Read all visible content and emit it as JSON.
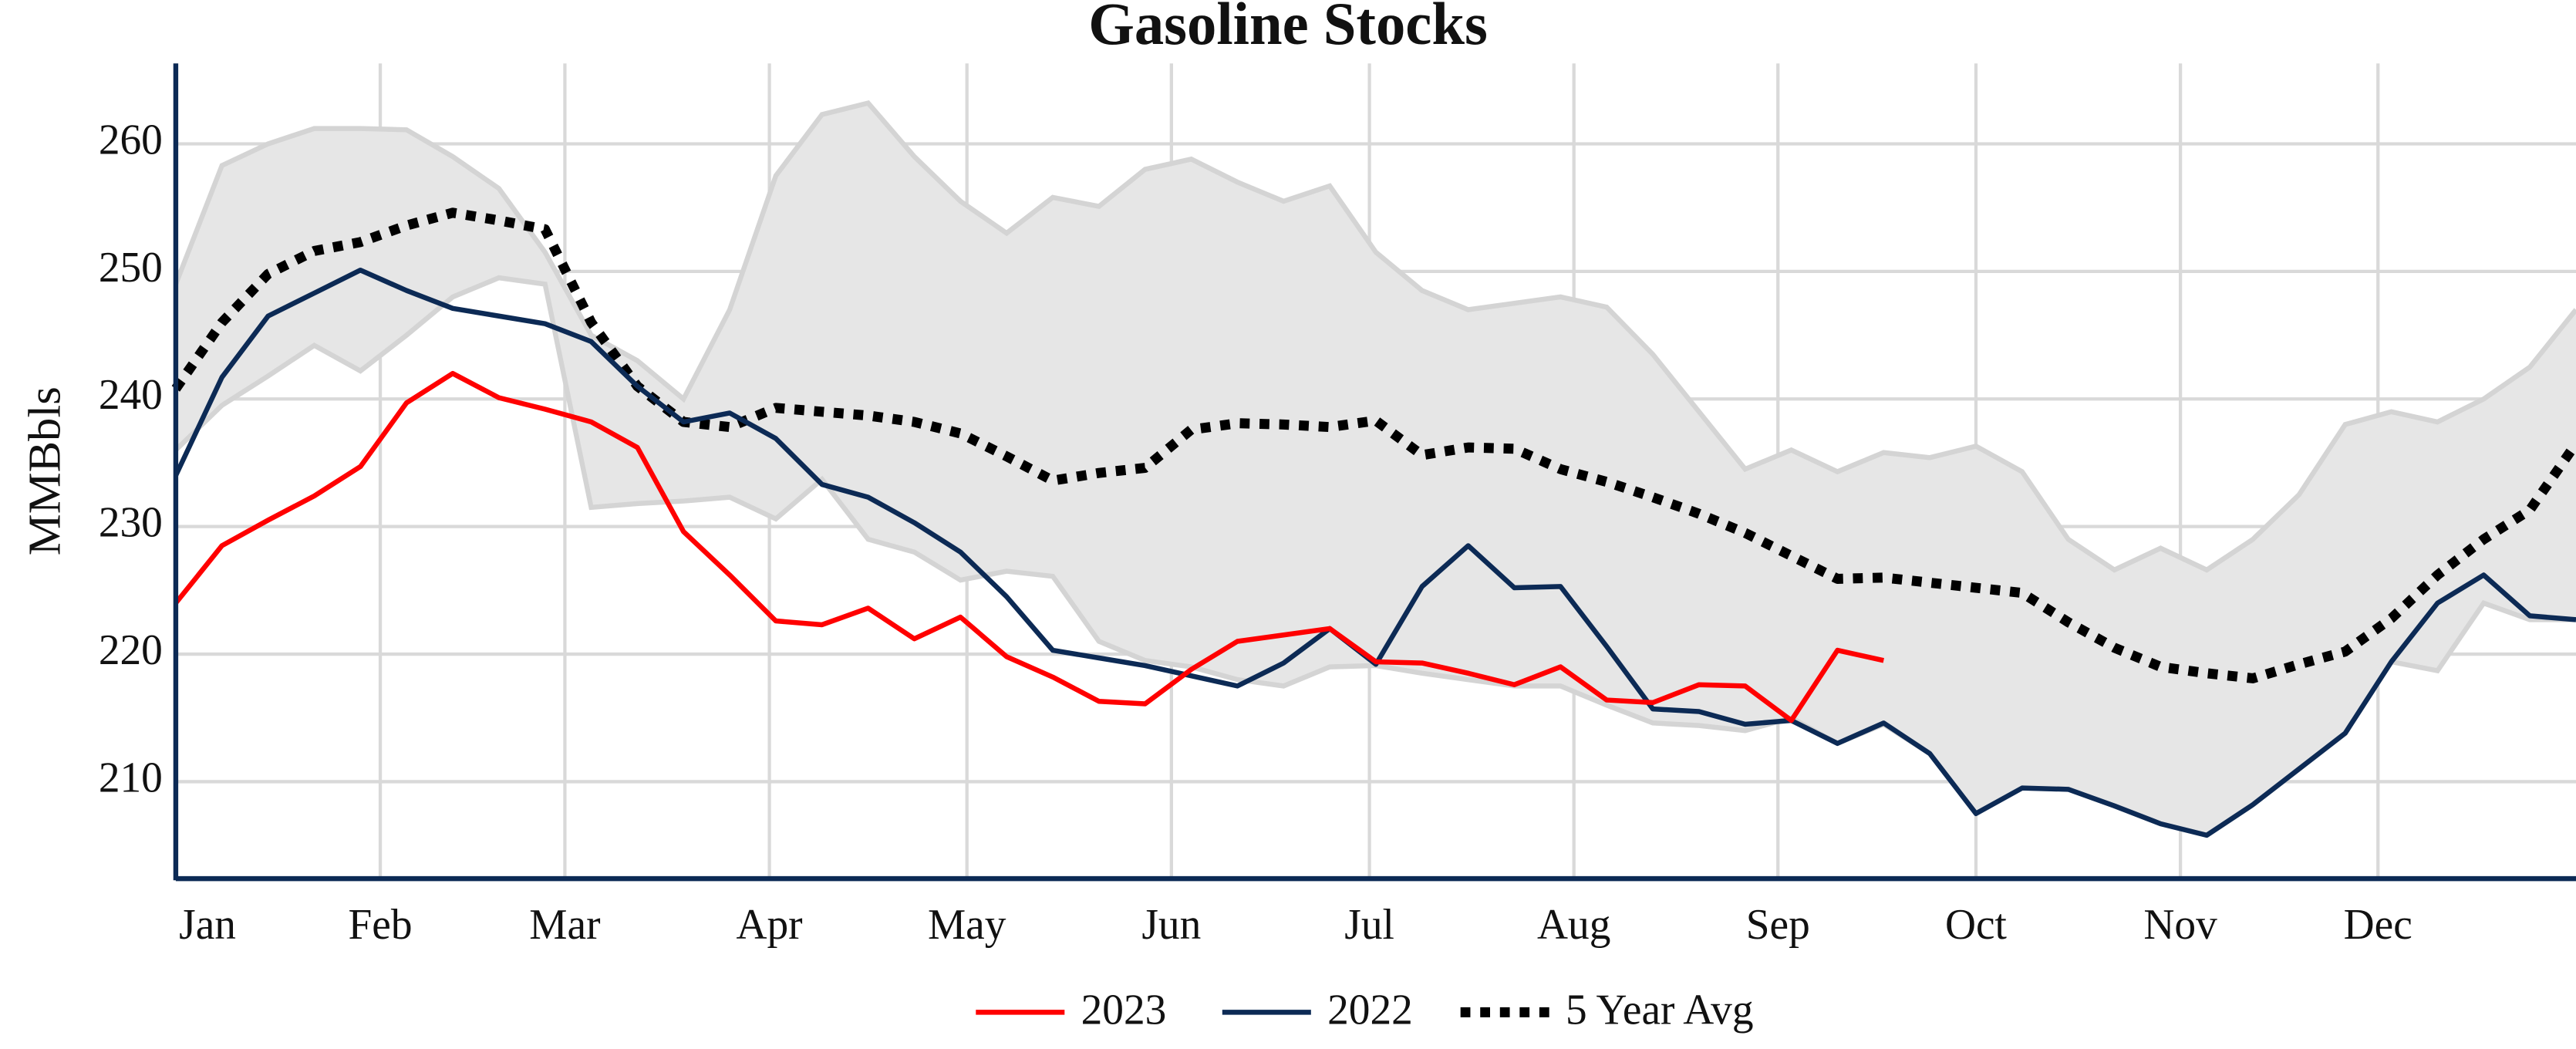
{
  "chart_data": {
    "type": "line",
    "title": "Gasoline Stocks",
    "y_label": "MMBbls",
    "x": [
      0,
      1,
      2,
      3,
      4,
      5,
      6,
      7,
      8,
      9,
      10,
      11,
      12,
      13,
      14,
      15,
      16,
      17,
      18,
      19,
      20,
      21,
      22,
      23,
      24,
      25,
      26,
      27,
      28,
      29,
      30,
      31,
      32,
      33,
      34,
      35,
      36,
      37,
      38,
      39,
      40,
      41,
      42,
      43,
      44,
      45,
      46,
      47,
      48,
      49,
      50,
      51,
      52
    ],
    "xlim": [
      0,
      52
    ],
    "xticks": [
      {
        "value": 0,
        "label": "Jan"
      },
      {
        "value": 4.43,
        "label": "Feb"
      },
      {
        "value": 8.43,
        "label": "Mar"
      },
      {
        "value": 12.86,
        "label": "Apr"
      },
      {
        "value": 17.14,
        "label": "May"
      },
      {
        "value": 21.57,
        "label": "Jun"
      },
      {
        "value": 25.86,
        "label": "Jul"
      },
      {
        "value": 30.29,
        "label": "Aug"
      },
      {
        "value": 34.71,
        "label": "Sep"
      },
      {
        "value": 39,
        "label": "Oct"
      },
      {
        "value": 43.43,
        "label": "Nov"
      },
      {
        "value": 47.71,
        "label": "Dec"
      }
    ],
    "ylim": [
      202.4,
      266.3
    ],
    "yticks": [
      210,
      220,
      230,
      240,
      250,
      260
    ],
    "grid": true,
    "legend": "bottom",
    "band": {
      "color": "#e6e6e6",
      "edge_color": "#d4d4d4",
      "lower": [
        236,
        239.5,
        241.8,
        244.2,
        242.2,
        245,
        248,
        249.5,
        249,
        231.5,
        231.8,
        232,
        232.3,
        230.6,
        233.7,
        229,
        228,
        225.8,
        226.5,
        226.1,
        221,
        219.5,
        219,
        218,
        217.5,
        219,
        219.1,
        218.5,
        218,
        217.5,
        217.5,
        216,
        214.6,
        214.4,
        214,
        215,
        213,
        214.5,
        212.2,
        207.5,
        209.5,
        209.4,
        208.1,
        206.7,
        205.8,
        208.2,
        211,
        213.8,
        219.4,
        218.7,
        224,
        222.7,
        222.7
      ],
      "upper": [
        249,
        258.3,
        260,
        261.2,
        261.2,
        261.1,
        259,
        256.5,
        251.5,
        245,
        243,
        240,
        247,
        257.5,
        262.3,
        263.2,
        259,
        255.5,
        253,
        255.8,
        255.1,
        258,
        258.8,
        257,
        255.5,
        256.7,
        251.5,
        248.5,
        247,
        247.5,
        248,
        247.2,
        243.5,
        239,
        234.5,
        236,
        234.3,
        235.8,
        235.4,
        236.3,
        234.3,
        229,
        226.6,
        228.3,
        226.6,
        229,
        232.5,
        238,
        239,
        238.2,
        240,
        242.5,
        247
      ]
    },
    "series": [
      {
        "name": "2023",
        "color": "#ff0000",
        "dash": false,
        "values": [
          224,
          228.5,
          230.5,
          232.4,
          234.7,
          239.7,
          242,
          240.1,
          239.2,
          238.2,
          236.2,
          229.6,
          226.2,
          222.6,
          222.3,
          223.6,
          221.2,
          222.9,
          219.8,
          218.2,
          216.3,
          216.1,
          218.8,
          221,
          221.5,
          222,
          219.4,
          219.3,
          218.5,
          217.6,
          219,
          216.4,
          216.2,
          217.6,
          217.5,
          214.8,
          220.3,
          219.5,
          null,
          null,
          null,
          null,
          null,
          null,
          null,
          null,
          null,
          null,
          null,
          null,
          null,
          null,
          null
        ]
      },
      {
        "name": "2022",
        "color": "#0c2a55",
        "dash": false,
        "values": [
          234,
          241.7,
          246.5,
          248.3,
          250.1,
          248.5,
          247.1,
          246.5,
          245.9,
          244.5,
          241,
          238.2,
          238.9,
          236.9,
          233.3,
          232.3,
          230.3,
          228,
          224.5,
          220.3,
          219.7,
          219.1,
          218.3,
          217.5,
          219.3,
          222,
          219.2,
          225.3,
          228.5,
          225.2,
          225.3,
          220.6,
          215.7,
          215.5,
          214.5,
          214.8,
          213,
          214.6,
          212.2,
          207.5,
          209.5,
          209.4,
          208.1,
          206.7,
          205.8,
          208.2,
          211,
          213.8,
          219.4,
          224,
          226.2,
          223,
          222.7
        ]
      },
      {
        "name": "5 Year Avg",
        "color": "#000000",
        "dash": true,
        "values": [
          240.8,
          246,
          249.8,
          251.6,
          252.3,
          253.6,
          254.6,
          254,
          253.3,
          246,
          241,
          238.2,
          237.8,
          239.3,
          239,
          238.7,
          238.2,
          237.3,
          235.5,
          233.6,
          234.2,
          234.6,
          237.6,
          238.1,
          238,
          237.8,
          238.3,
          235.6,
          236.2,
          236.1,
          234.5,
          233.5,
          232.3,
          231,
          229.5,
          227.7,
          225.9,
          226,
          225.6,
          225.2,
          224.8,
          222.5,
          220.5,
          219,
          218.5,
          218.1,
          219.2,
          220.2,
          222.8,
          226.2,
          229,
          231.3,
          236.5
        ]
      }
    ]
  }
}
